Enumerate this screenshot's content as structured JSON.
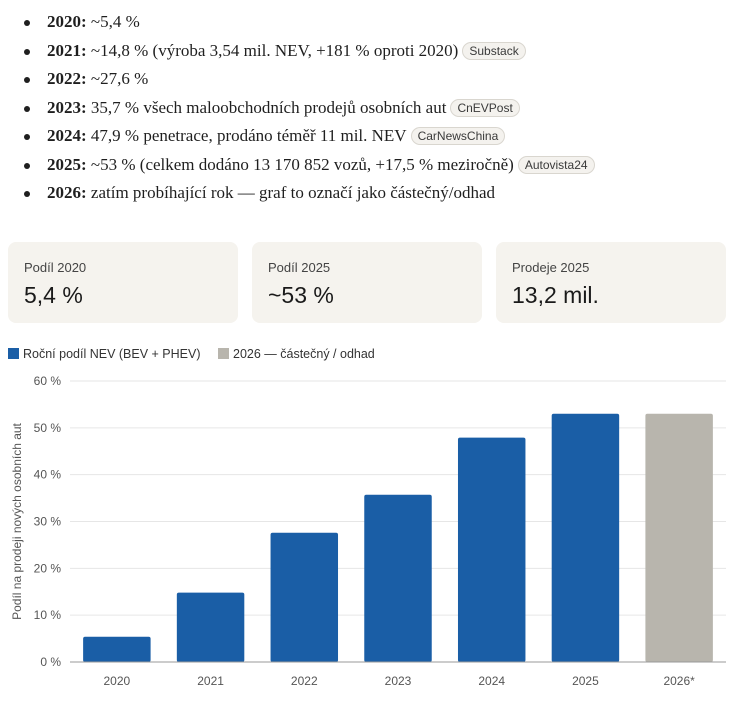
{
  "bullets": [
    {
      "year": "2020:",
      "text": " ~5,4 %",
      "source": ""
    },
    {
      "year": "2021:",
      "text": " ~14,8 % (výroba 3,54 mil. NEV, +181 % oproti 2020)",
      "source": "Substack"
    },
    {
      "year": "2022:",
      "text": " ~27,6 %",
      "source": ""
    },
    {
      "year": "2023:",
      "text": " 35,7 % všech maloobchodních prodejů osobních aut",
      "source": "CnEVPost"
    },
    {
      "year": "2024:",
      "text": " 47,9 % penetrace, prodáno téměř 11 mil. NEV",
      "source": "CarNewsChina"
    },
    {
      "year": "2025:",
      "text": " ~53 % (celkem dodáno 13 170 852 vozů, +17,5 % meziročně)",
      "source": "Autovista24"
    },
    {
      "year": "2026:",
      "text": " zatím probíhající rok — graf to označí jako částečný/odhad",
      "source": ""
    }
  ],
  "stats": [
    {
      "label": "Podíl 2020",
      "value": "5,4 %"
    },
    {
      "label": "Podíl 2025",
      "value": "~53 %"
    },
    {
      "label": "Prodeje 2025",
      "value": "13,2 mil."
    }
  ],
  "colors": {
    "actual": "#1a5ea6",
    "estimate": "#b8b5ad",
    "grid": "#e6e6e6",
    "axis": "#999999"
  },
  "chart_data": {
    "type": "bar",
    "categories": [
      "2020",
      "2021",
      "2022",
      "2023",
      "2024",
      "2025",
      "2026*"
    ],
    "values": [
      5.4,
      14.8,
      27.6,
      35.7,
      47.9,
      53,
      53
    ],
    "estimated": [
      false,
      false,
      false,
      false,
      false,
      false,
      true
    ],
    "series": [
      {
        "name": "Roční podíl NEV (BEV + PHEV)",
        "color": "#1a5ea6"
      },
      {
        "name": "2026 — částečný / odhad",
        "color": "#b8b5ad"
      }
    ],
    "ylabel": "Podíl na prodeji nových osobních aut",
    "ylim": [
      0,
      60
    ],
    "yticks": [
      0,
      10,
      20,
      30,
      40,
      50,
      60
    ],
    "ytick_labels": [
      "0 %",
      "10 %",
      "20 %",
      "30 %",
      "40 %",
      "50 %",
      "60 %"
    ],
    "grid": true,
    "legend_position": "top-left"
  }
}
